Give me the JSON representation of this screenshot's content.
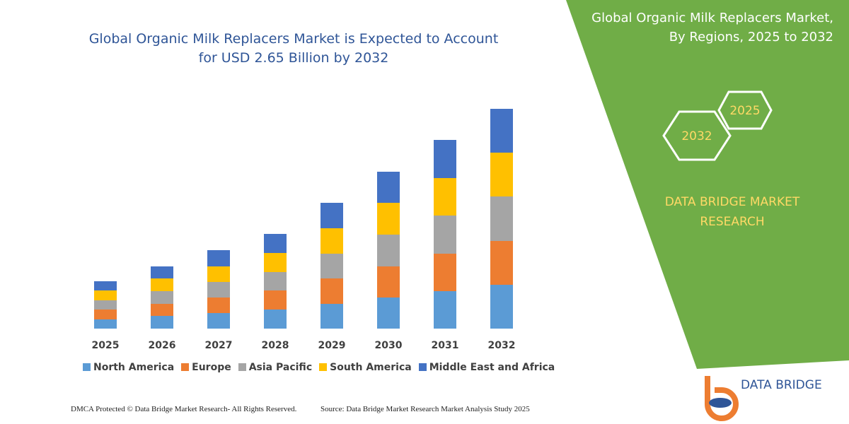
{
  "chart_data": {
    "type": "bar",
    "stacked": true,
    "title": "Global Organic Milk Replacers Market is Expected to Account for USD 2.65 Billion by 2032",
    "categories": [
      "2025",
      "2026",
      "2027",
      "2028",
      "2029",
      "2030",
      "2031",
      "2032"
    ],
    "series": [
      {
        "name": "North America",
        "color": "#5b9bd5",
        "values": [
          13,
          18,
          22,
          27,
          35,
          44,
          53,
          62
        ]
      },
      {
        "name": "Europe",
        "color": "#ed7d31",
        "values": [
          14,
          17,
          22,
          27,
          36,
          44,
          53,
          62
        ]
      },
      {
        "name": "Asia Pacific",
        "color": "#a5a5a5",
        "values": [
          13,
          18,
          22,
          26,
          35,
          45,
          54,
          63
        ]
      },
      {
        "name": "South America",
        "color": "#ffc000",
        "values": [
          14,
          18,
          22,
          27,
          36,
          45,
          53,
          62
        ]
      },
      {
        "name": "Middle East and Africa",
        "color": "#4472c4",
        "values": [
          13,
          17,
          23,
          27,
          36,
          44,
          54,
          62
        ]
      }
    ]
  },
  "side_panel": {
    "title": "Global Organic Milk Replacers Market, By Regions, 2025 to 2032",
    "hexagons": [
      "2025",
      "2032"
    ],
    "brand": "DATA BRIDGE MARKET RESEARCH"
  },
  "logo": {
    "text": "DATA BRIDGE"
  },
  "footer": {
    "left": "DMCA Protected © Data Bridge Market Research-  All Rights Reserved.",
    "right": "Source: Data Bridge Market Research  Market Analysis Study 2025"
  }
}
